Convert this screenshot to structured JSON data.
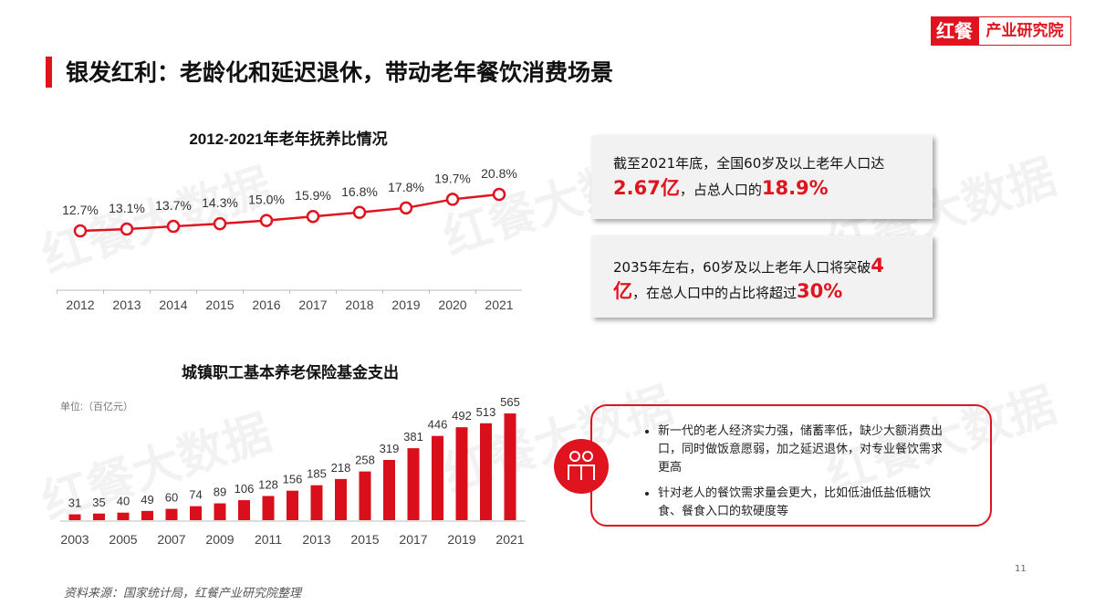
{
  "logo": {
    "brand": "红餐",
    "name": "产业研究院"
  },
  "header": {
    "title": "银发红利：老龄化和延迟退休，带动老年餐饮消费场景"
  },
  "watermark": "红餐大数据",
  "chart_data": [
    {
      "type": "line",
      "title": "2012-2021年老年抚养比情况",
      "color": "#e0141e",
      "categories": [
        "2012",
        "2013",
        "2014",
        "2015",
        "2016",
        "2017",
        "2018",
        "2019",
        "2020",
        "2021"
      ],
      "values": [
        12.7,
        13.1,
        13.7,
        14.3,
        15.0,
        15.9,
        16.8,
        17.8,
        19.7,
        20.8
      ],
      "value_labels": [
        "12.7%",
        "13.1%",
        "13.7%",
        "14.3%",
        "15.0%",
        "15.9%",
        "16.8%",
        "17.8%",
        "19.7%",
        "20.8%"
      ]
    },
    {
      "type": "bar",
      "title": "城镇职工基本养老保险基金支出",
      "subtitle": "单位:（百亿元）",
      "color": "#d9101b",
      "categories": [
        "2003",
        null,
        "2005",
        null,
        "2007",
        null,
        "2009",
        null,
        "2011",
        null,
        "2013",
        null,
        "2015",
        null,
        "2017",
        null,
        "2019",
        null,
        "2021"
      ],
      "values": [
        31,
        35,
        40,
        49,
        60,
        74,
        89,
        106,
        128,
        156,
        185,
        218,
        258,
        319,
        381,
        446,
        492,
        513,
        565
      ]
    }
  ],
  "callouts": [
    {
      "text": "截至2021年底，全国60岁及以上老年人口达",
      "highlight1": "2.67亿",
      "text2": "，占总人口的",
      "highlight2": "18.9%"
    },
    {
      "text": "2035年左右，60岁及以上老年人口将突破",
      "highlight1": "4亿",
      "text2": "，在总人口中的占比将超过",
      "highlight2": "30%"
    }
  ],
  "bullets": [
    "新一代的老人经济实力强，储蓄率低，缺少大额消费出口，同时做饭意愿弱，加之延迟退休，对专业餐饮需求更高",
    "针对老人的餐饮需求量会更大，比如低油低盐低糖饮食、餐食入口的软硬度等"
  ],
  "page_number": "11",
  "source": "资料来源：国家统计局，红餐产业研究院整理"
}
